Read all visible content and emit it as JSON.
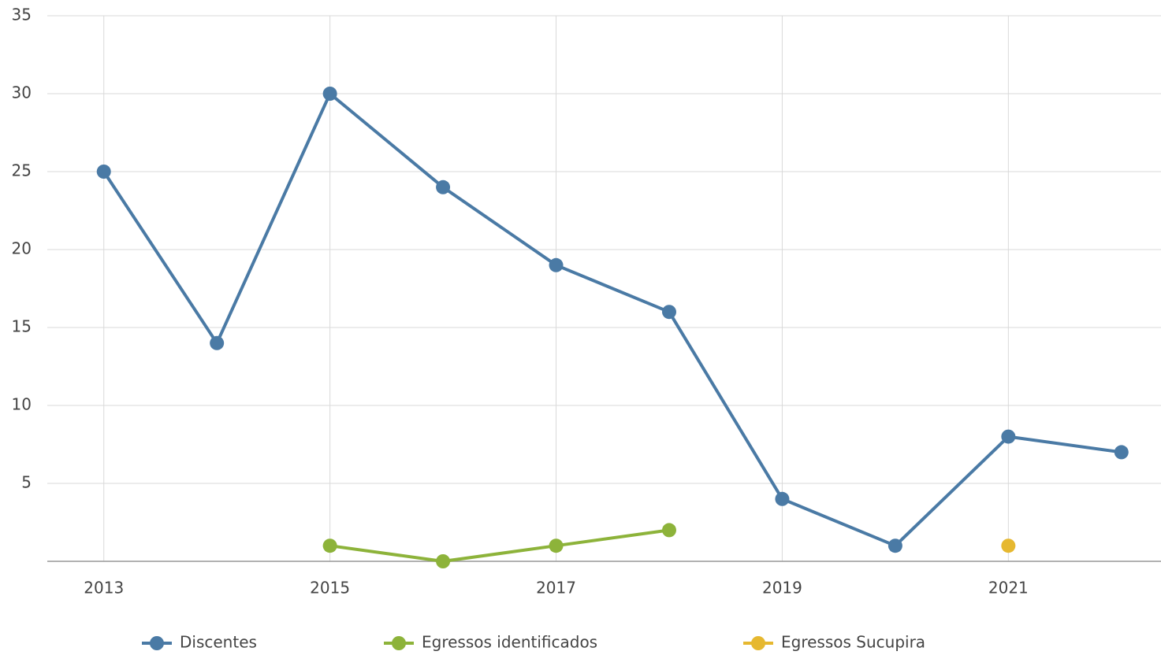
{
  "chart_data": {
    "type": "line",
    "x": [
      2013,
      2014,
      2015,
      2016,
      2017,
      2018,
      2019,
      2020,
      2021,
      2022
    ],
    "series": [
      {
        "name": "Discentes",
        "color": "#4a7aa5",
        "values": [
          25,
          14,
          30,
          24,
          19,
          16,
          4,
          1,
          8,
          7
        ]
      },
      {
        "name": "Egressos identificados",
        "color": "#8db33a",
        "values": [
          null,
          null,
          1,
          0,
          1,
          2,
          null,
          null,
          null,
          null
        ]
      },
      {
        "name": "Egressos Sucupira",
        "color": "#e6b830",
        "values": [
          null,
          null,
          null,
          null,
          null,
          null,
          null,
          null,
          1,
          null
        ]
      }
    ],
    "xlim": [
      2012.5,
      2022.35
    ],
    "xticks": [
      2013,
      2015,
      2017,
      2019,
      2021
    ],
    "ylim": [
      0,
      35
    ],
    "yticks": [
      5,
      10,
      15,
      20,
      25,
      30,
      35
    ],
    "grid": true,
    "legend": "bottom"
  }
}
